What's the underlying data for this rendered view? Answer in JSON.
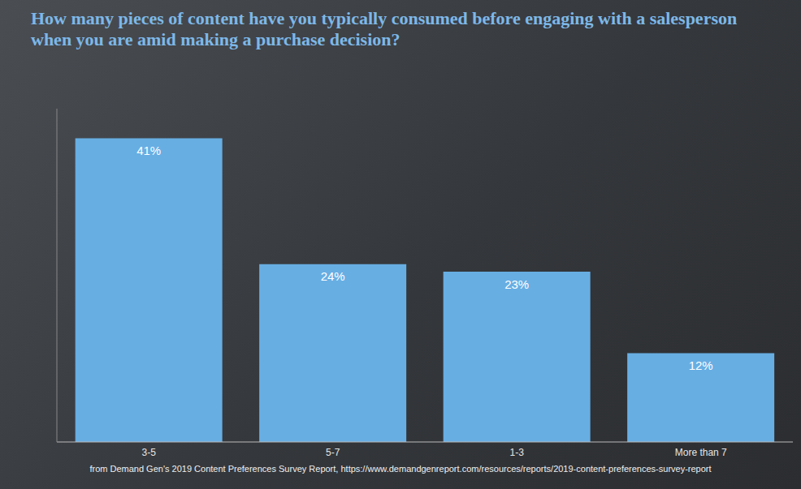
{
  "chart_data": {
    "type": "bar",
    "title": "How many pieces of content have you typically consumed before engaging with a salesperson when you are amid making a purchase decision?",
    "source": "from Demand Gen's 2019 Content Preferences Survey Report, https://www.demandgenreport.com/resources/reports/2019-content-preferences-survey-report",
    "categories": [
      "3-5",
      "5-7",
      "1-3",
      "More than 7"
    ],
    "values": [
      41,
      24,
      23,
      12
    ],
    "value_labels": [
      "41%",
      "24%",
      "23%",
      "12%"
    ],
    "color": "#67aee3",
    "ylim": [
      0,
      45
    ],
    "grid": false,
    "data_labels": true,
    "tick_labels": "x"
  }
}
